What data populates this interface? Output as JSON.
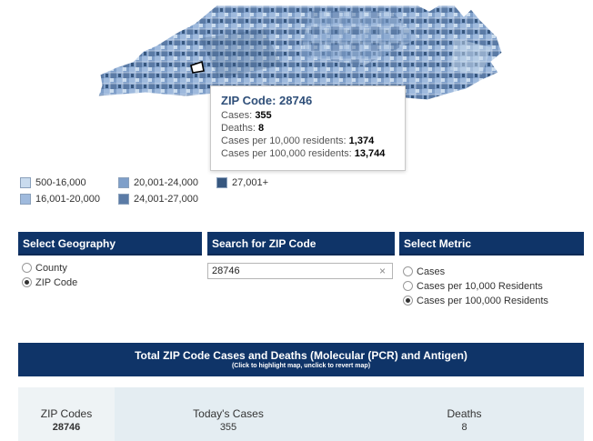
{
  "tooltip": {
    "title": "ZIP Code: 28746",
    "cases_label": "Cases:",
    "cases_value": "355",
    "deaths_label": "Deaths:",
    "deaths_value": "8",
    "per10k_label": "Cases per 10,000 residents:",
    "per10k_value": "1,374",
    "per100k_label": "Cases per 100,000 residents:",
    "per100k_value": "13,744"
  },
  "legend": [
    {
      "label": "500-16,000",
      "color": "#c9dbee"
    },
    {
      "label": "16,001-20,000",
      "color": "#9fbadd"
    },
    {
      "label": "20,001-24,000",
      "color": "#7f9fc9"
    },
    {
      "label": "24,001-27,000",
      "color": "#5b7ba6"
    },
    {
      "label": "27,001+",
      "color": "#37577f"
    }
  ],
  "geography": {
    "header": "Select Geography",
    "options": [
      {
        "label": "County",
        "selected": false
      },
      {
        "label": "ZIP Code",
        "selected": true
      }
    ]
  },
  "search": {
    "header": "Search for ZIP Code",
    "value": "28746",
    "clear_icon": "×"
  },
  "metric": {
    "header": "Select Metric",
    "options": [
      {
        "label": "Cases",
        "selected": false
      },
      {
        "label": "Cases per 10,000 Residents",
        "selected": false
      },
      {
        "label": "Cases per 100,000 Residents",
        "selected": true
      }
    ]
  },
  "banner": {
    "title": "Total ZIP Code Cases and Deaths (Molecular (PCR) and Antigen)",
    "subtitle": "(Click to highlight map, unclick to revert map)"
  },
  "table": {
    "columns": [
      "ZIP Codes",
      "Today's Cases",
      "Deaths"
    ],
    "row": [
      "28746",
      "355",
      "8"
    ]
  },
  "colors": {
    "header_bg": "#0f3468",
    "map_light": "#c9dbee",
    "map_dark": "#37577f"
  }
}
